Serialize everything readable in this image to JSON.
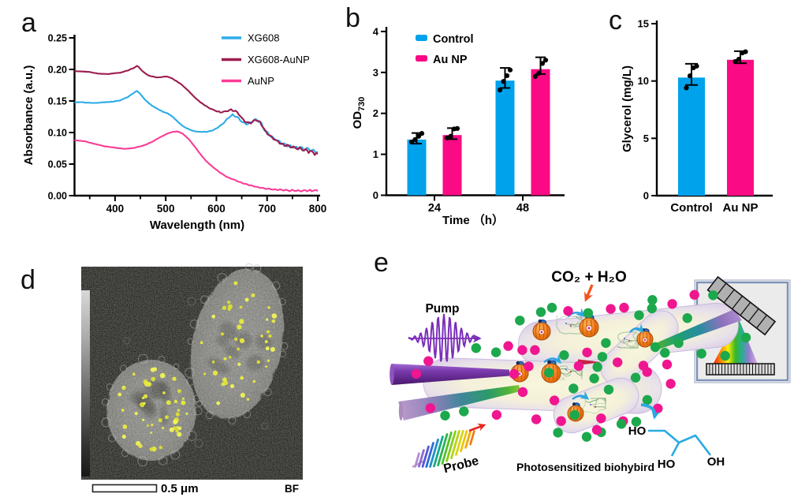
{
  "figure": {
    "panel_labels": {
      "a": "a",
      "b": "b",
      "c": "c",
      "d": "d",
      "e": "e"
    }
  },
  "chart_data": [
    {
      "id": "uvvis-spectra",
      "type": "line",
      "xlabel": "Wavelength (nm)",
      "ylabel": "Absorbance (a.u.)",
      "xlim": [
        320,
        800
      ],
      "ylim": [
        0,
        0.25
      ],
      "xticks": [
        400,
        500,
        600,
        700,
        800
      ],
      "xticks_minor": [
        350,
        450,
        550,
        650,
        750
      ],
      "ytick_labels": [
        "0.00",
        "0.05",
        "0.10",
        "0.15",
        "0.20",
        "0.25"
      ],
      "yticks": [
        0,
        0.05,
        0.1,
        0.15,
        0.2,
        0.25
      ],
      "grid": false,
      "legend_position": "top-right",
      "series": [
        {
          "name": "XG608",
          "color": "#2CACE8",
          "points": [
            [
              320,
              0.148
            ],
            [
              335,
              0.148
            ],
            [
              350,
              0.147
            ],
            [
              365,
              0.147
            ],
            [
              380,
              0.148
            ],
            [
              395,
              0.149
            ],
            [
              410,
              0.151
            ],
            [
              425,
              0.156
            ],
            [
              437,
              0.163
            ],
            [
              443,
              0.166
            ],
            [
              450,
              0.161
            ],
            [
              460,
              0.151
            ],
            [
              472,
              0.143
            ],
            [
              485,
              0.137
            ],
            [
              497,
              0.132
            ],
            [
              505,
              0.13
            ],
            [
              515,
              0.124
            ],
            [
              525,
              0.116
            ],
            [
              538,
              0.108
            ],
            [
              552,
              0.103
            ],
            [
              565,
              0.101
            ],
            [
              580,
              0.101
            ],
            [
              595,
              0.104
            ],
            [
              610,
              0.112
            ],
            [
              622,
              0.122
            ],
            [
              632,
              0.128
            ],
            [
              642,
              0.124
            ],
            [
              652,
              0.116
            ],
            [
              660,
              0.113
            ],
            [
              668,
              0.116
            ],
            [
              678,
              0.121
            ],
            [
              686,
              0.117
            ],
            [
              695,
              0.105
            ],
            [
              705,
              0.096
            ],
            [
              718,
              0.088
            ],
            [
              732,
              0.082
            ],
            [
              748,
              0.078
            ],
            [
              765,
              0.075
            ],
            [
              782,
              0.073
            ],
            [
              800,
              0.07
            ]
          ]
        },
        {
          "name": "XG608-AuNP",
          "color": "#9C1C4F",
          "points": [
            [
              320,
              0.197
            ],
            [
              335,
              0.197
            ],
            [
              350,
              0.196
            ],
            [
              362,
              0.194
            ],
            [
              375,
              0.193
            ],
            [
              388,
              0.193
            ],
            [
              400,
              0.194
            ],
            [
              412,
              0.195
            ],
            [
              424,
              0.198
            ],
            [
              436,
              0.202
            ],
            [
              444,
              0.206
            ],
            [
              452,
              0.199
            ],
            [
              462,
              0.192
            ],
            [
              472,
              0.189
            ],
            [
              483,
              0.187
            ],
            [
              493,
              0.188
            ],
            [
              502,
              0.189
            ],
            [
              512,
              0.186
            ],
            [
              522,
              0.181
            ],
            [
              533,
              0.175
            ],
            [
              545,
              0.166
            ],
            [
              558,
              0.155
            ],
            [
              570,
              0.147
            ],
            [
              583,
              0.14
            ],
            [
              596,
              0.135
            ],
            [
              608,
              0.132
            ],
            [
              620,
              0.134
            ],
            [
              630,
              0.136
            ],
            [
              640,
              0.133
            ],
            [
              650,
              0.123
            ],
            [
              660,
              0.115
            ],
            [
              668,
              0.116
            ],
            [
              678,
              0.12
            ],
            [
              686,
              0.116
            ],
            [
              695,
              0.104
            ],
            [
              705,
              0.095
            ],
            [
              718,
              0.087
            ],
            [
              732,
              0.081
            ],
            [
              748,
              0.077
            ],
            [
              765,
              0.074
            ],
            [
              782,
              0.071
            ],
            [
              800,
              0.065
            ]
          ]
        },
        {
          "name": "AuNP",
          "color": "#FA3C96",
          "points": [
            [
              320,
              0.088
            ],
            [
              340,
              0.086
            ],
            [
              360,
              0.082
            ],
            [
              380,
              0.078
            ],
            [
              400,
              0.076
            ],
            [
              420,
              0.074
            ],
            [
              440,
              0.076
            ],
            [
              458,
              0.08
            ],
            [
              475,
              0.086
            ],
            [
              492,
              0.094
            ],
            [
              505,
              0.099
            ],
            [
              515,
              0.101
            ],
            [
              522,
              0.102
            ],
            [
              532,
              0.099
            ],
            [
              545,
              0.09
            ],
            [
              558,
              0.077
            ],
            [
              570,
              0.064
            ],
            [
              582,
              0.053
            ],
            [
              595,
              0.044
            ],
            [
              608,
              0.036
            ],
            [
              622,
              0.029
            ],
            [
              638,
              0.024
            ],
            [
              655,
              0.019
            ],
            [
              672,
              0.015
            ],
            [
              690,
              0.012
            ],
            [
              710,
              0.01
            ],
            [
              730,
              0.009
            ],
            [
              755,
              0.008
            ],
            [
              778,
              0.008
            ],
            [
              800,
              0.008
            ]
          ]
        }
      ]
    },
    {
      "id": "od730-bars",
      "type": "bar",
      "xlabel": "Time （h）",
      "ylabel": "OD",
      "ylabel_sub": "730",
      "ylim": [
        0,
        4
      ],
      "yticks": [
        0,
        1,
        2,
        3,
        4
      ],
      "categories": [
        "24",
        "48"
      ],
      "legend_position": "top-left",
      "series": [
        {
          "name": "Control",
          "color": "#00A2EC",
          "values": [
            1.36,
            2.8
          ],
          "err_low": [
            1.26,
            2.62
          ],
          "err_high": [
            1.52,
            3.11
          ],
          "points": [
            [
              1.3,
              1.36,
              1.44,
              1.51
            ],
            [
              2.57,
              2.78,
              2.92,
              3.06
            ]
          ]
        },
        {
          "name": "Au NP",
          "color": "#FB0A85",
          "values": [
            1.47,
            3.08
          ],
          "err_low": [
            1.37,
            2.96
          ],
          "err_high": [
            1.64,
            3.37
          ],
          "points": [
            [
              1.4,
              1.44,
              1.62,
              1.63
            ],
            [
              2.9,
              2.98,
              3.22,
              3.3
            ]
          ]
        }
      ]
    },
    {
      "id": "glycerol-bars",
      "type": "bar",
      "xlabel": "",
      "ylabel": "Glycerol (mg/L)",
      "ylim": [
        0,
        15
      ],
      "yticks": [
        0,
        5,
        10,
        15
      ],
      "categories": [
        "Control",
        "Au NP"
      ],
      "bars": [
        {
          "label": "Control",
          "color": "#00A2EC",
          "value": 10.3,
          "err_low": 9.65,
          "err_high": 11.5,
          "points": [
            9.4,
            10.45,
            11.15,
            11.3
          ]
        },
        {
          "label": "Au NP",
          "color": "#FB0A85",
          "value": 11.85,
          "err_low": 11.55,
          "err_high": 12.6,
          "points": [
            11.7,
            11.9,
            12.45,
            12.55
          ]
        }
      ]
    }
  ],
  "panel_d": {
    "scale_bar_label": "0.5 μm",
    "mode_label": "BF"
  },
  "panel_e": {
    "pump_label": "Pump",
    "probe_label": "Probe",
    "reactants_label": "CO₂ + H₂O",
    "caption": "Photosensitized biohybird",
    "glycerol_labels": {
      "ho_top": "HO",
      "ho_bottom": "HO",
      "oh_right": "OH"
    },
    "colors": {
      "green_dot": "#1CA84C",
      "magenta_dot": "#F01690",
      "pump_purple": "#7B2FB8",
      "probe_red": "#E8251D",
      "reactants_orange": "#F4541E",
      "glycerol_blue": "#29ABE2"
    }
  }
}
